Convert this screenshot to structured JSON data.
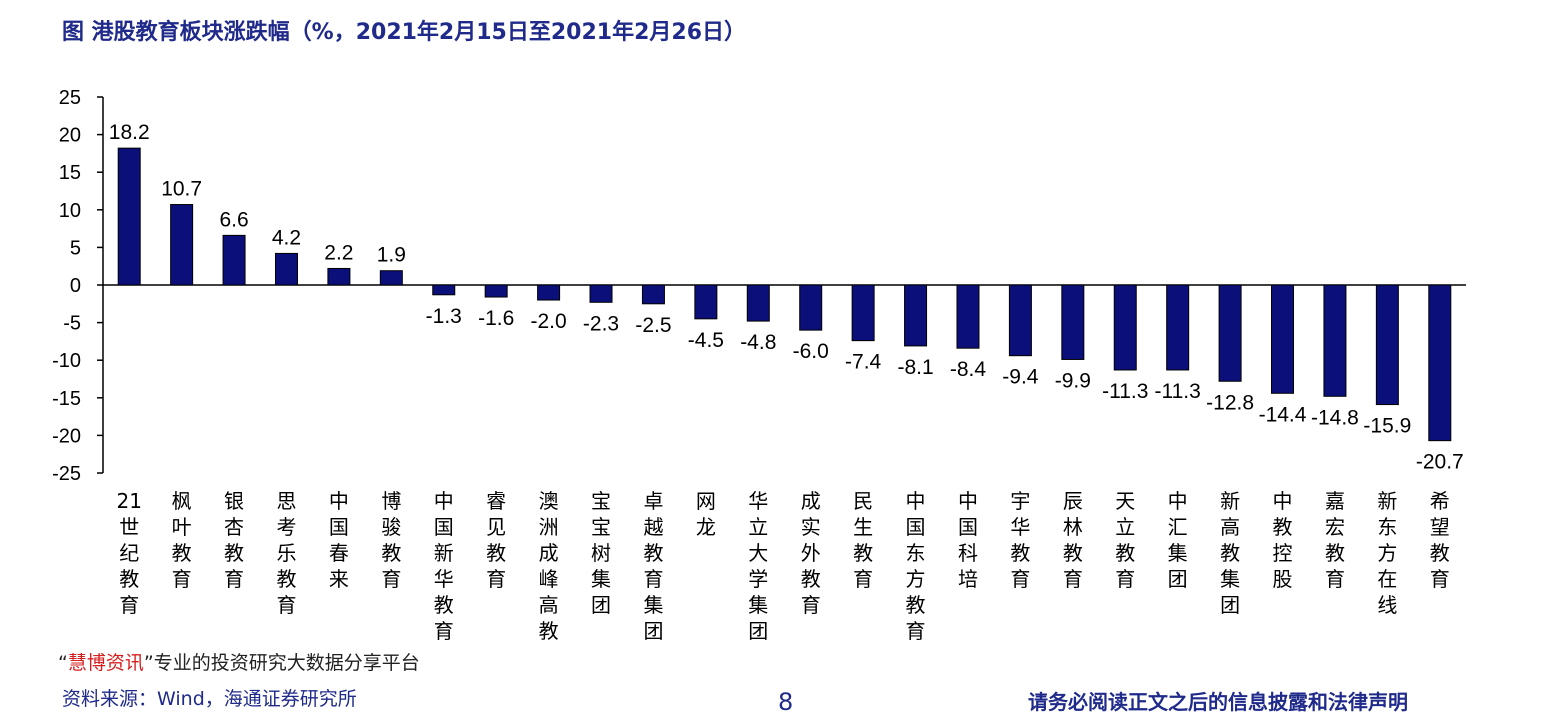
{
  "title": "图  港股教育板块涨跌幅（%，2021年2月15日至2021年2月26日）",
  "footer": {
    "watermark_prefix": "“",
    "watermark_brand": "慧博资讯",
    "watermark_rest": "”专业的投资研究大数据分享平台",
    "source": "资料来源：Wind，海通证券研究所",
    "page_number": "8",
    "disclaimer": "请务必阅读正文之后的信息披露和法律声明"
  },
  "colors": {
    "bar": "#0b0f7a",
    "title": "#1f2a8a",
    "axis": "#000000"
  },
  "chart_data": {
    "type": "bar",
    "title": "港股教育板块涨跌幅（%，2021年2月15日至2021年2月26日）",
    "categories": [
      "21世纪教育",
      "枫叶教育",
      "银杏教育",
      "思考乐教育",
      "中国春来",
      "博骏教育",
      "中国新华教育",
      "睿见教育",
      "澳洲成峰高教",
      "宝宝树集团",
      "卓越教育集团",
      "网龙",
      "华立大学集团",
      "成实外教育",
      "民生教育",
      "中国东方教育",
      "中国科培",
      "宇华教育",
      "辰林教育",
      "天立教育",
      "中汇集团",
      "新高教集团",
      "中教控股",
      "嘉宏教育",
      "新东方在线",
      "希望教育"
    ],
    "values": [
      18.2,
      10.7,
      6.6,
      4.2,
      2.2,
      1.9,
      -1.3,
      -1.6,
      -2.0,
      -2.3,
      -2.5,
      -4.5,
      -4.8,
      -6.0,
      -7.4,
      -8.1,
      -8.4,
      -9.4,
      -9.9,
      -11.3,
      -11.3,
      -12.8,
      -14.4,
      -14.8,
      -15.9,
      -20.7
    ],
    "value_labels": [
      "18.2",
      "10.7",
      "6.6",
      "4.2",
      "2.2",
      "1.9",
      "-1.3",
      "-1.6",
      "-2.0",
      "-2.3",
      "-2.5",
      "-4.5",
      "-4.8",
      "-6.0",
      "-7.4",
      "-8.1",
      "-8.4",
      "-9.4",
      "-9.9",
      "-11.3",
      "-11.3",
      "-12.8",
      "-14.4",
      "-14.8",
      "-15.9",
      "-20.7"
    ],
    "ylim": [
      -25,
      25
    ],
    "yticks": [
      "25",
      "20",
      "15",
      "10",
      "5",
      "0",
      "-5",
      "-10",
      "-15",
      "-20",
      "-25"
    ],
    "xlabel": "",
    "ylabel": "",
    "grid": false,
    "legend": "none"
  }
}
